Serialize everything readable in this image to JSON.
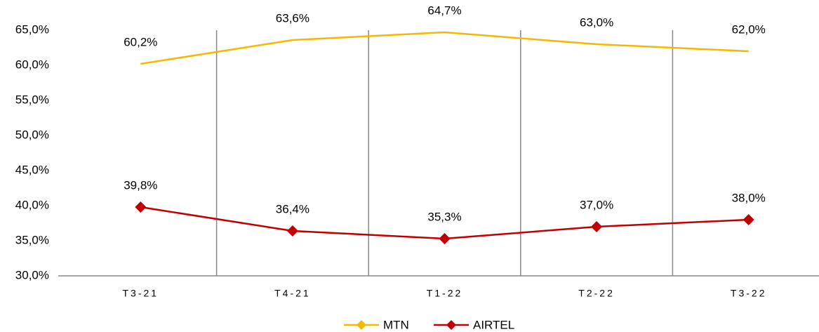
{
  "chart_data": {
    "type": "line",
    "categories": [
      "T3-21",
      "T4-21",
      "T1-22",
      "T2-22",
      "T3-22"
    ],
    "series": [
      {
        "name": "MTN",
        "color": "#f5b800",
        "values": [
          60.2,
          63.6,
          64.7,
          63.0,
          62.0
        ],
        "value_labels": [
          "60,2%",
          "63,6%",
          "64,7%",
          "63,0%",
          "62,0%"
        ]
      },
      {
        "name": "AIRTEL",
        "color": "#c00000",
        "values": [
          39.8,
          36.4,
          35.3,
          37.0,
          38.0
        ],
        "value_labels": [
          "39,8%",
          "36,4%",
          "35,3%",
          "37,0%",
          "38,0%"
        ]
      }
    ],
    "ylim": [
      30,
      65
    ],
    "yticks": [
      {
        "value": 30,
        "label": "30,0%"
      },
      {
        "value": 35,
        "label": "35,0%"
      },
      {
        "value": 40,
        "label": "40,0%"
      },
      {
        "value": 45,
        "label": "45,0%"
      },
      {
        "value": 50,
        "label": "50,0%"
      },
      {
        "value": 55,
        "label": "55,0%"
      },
      {
        "value": 60,
        "label": "60,0%"
      },
      {
        "value": 65,
        "label": "65,0%"
      }
    ],
    "grid": true,
    "legend": "bottom"
  }
}
